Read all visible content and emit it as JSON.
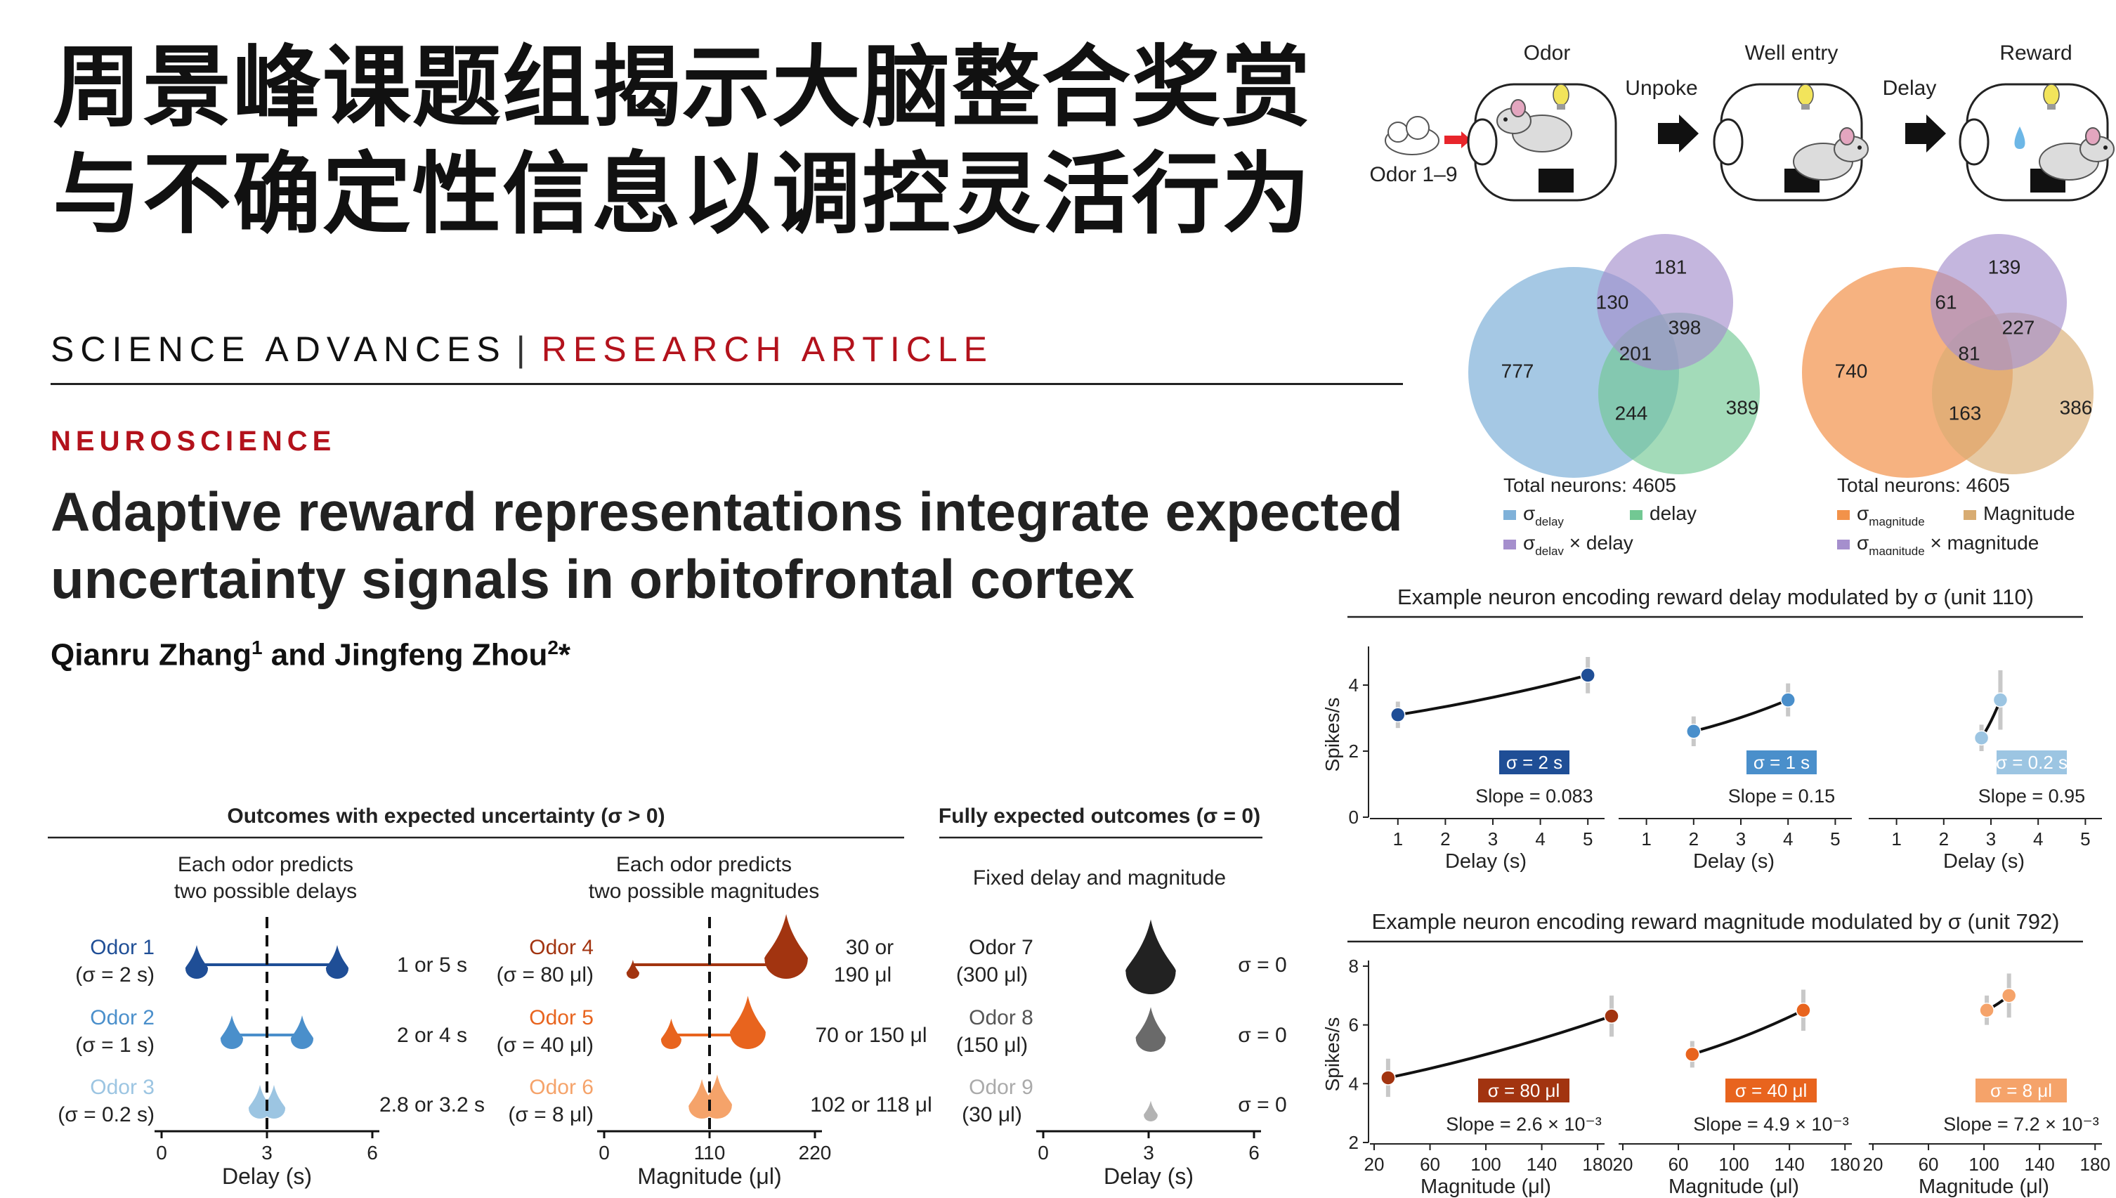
{
  "headline": {
    "line1": "周景峰课题组揭示大脑整合奖赏",
    "line2": "与不确定性信息以调控灵活行为"
  },
  "journal": {
    "name": "SCIENCE ADVANCES",
    "separator": "|",
    "article_type": "RESEARCH ARTICLE"
  },
  "section": "NEUROSCIENCE",
  "article": {
    "title_line1": "Adaptive reward representations integrate expected",
    "title_line2": "uncertainty signals in orbitofrontal cortex",
    "author1": "Qianru Zhang",
    "author1_sup": "1",
    "author_join": " and ",
    "author2": "Jingfeng Zhou",
    "author2_sup": "2",
    "author2_mark": "*"
  },
  "task_schematic": {
    "odor_label": "Odor",
    "odor_range": "Odor 1–9",
    "unpoke": "Unpoke",
    "well_entry": "Well entry",
    "delay": "Delay",
    "reward": "Reward"
  },
  "design_panel": {
    "header_uncertain": "Outcomes with expected uncertainty (σ > 0)",
    "header_fixed": "Fully expected outcomes (σ = 0)",
    "delay_sub1": "Each odor predicts",
    "delay_sub2": "two possible delays",
    "mag_sub1": "Each odor predicts",
    "mag_sub2": "two possible magnitudes",
    "fixed_sub": "Fixed delay and magnitude",
    "delay_rows": [
      {
        "odor": "Odor 1",
        "sigma": "(σ = 2 s)",
        "outcome": "1 or 5 s",
        "color": "#1f4e96",
        "low": 1,
        "high": 5
      },
      {
        "odor": "Odor 2",
        "sigma": "(σ = 1 s)",
        "outcome": "2 or 4 s",
        "color": "#4a8fcb",
        "low": 2,
        "high": 4
      },
      {
        "odor": "Odor 3",
        "sigma": "(σ = 0.2 s)",
        "outcome": "2.8 or 3.2 s",
        "color": "#9cc5e2",
        "low": 2.8,
        "high": 3.2
      }
    ],
    "mag_rows": [
      {
        "odor": "Odor 4",
        "sigma": "(σ = 80 μl)",
        "outcome1": "30 or",
        "outcome2": "190 μl",
        "color": "#a23410",
        "low": 30,
        "high": 190
      },
      {
        "odor": "Odor 5",
        "sigma": "(σ = 40 μl)",
        "outcome1": "70 or 150 μl",
        "outcome2": "",
        "color": "#e8641e",
        "low": 70,
        "high": 150
      },
      {
        "odor": "Odor 6",
        "sigma": "(σ = 8 μl)",
        "outcome1": "102 or 118 μl",
        "outcome2": "",
        "color": "#f5a36a",
        "low": 102,
        "high": 118
      }
    ],
    "fixed_rows": [
      {
        "odor": "Odor 7",
        "sub": "(300 μl)",
        "sigma": "σ = 0",
        "color": "#222222",
        "text_color": "#222222",
        "volume": 300
      },
      {
        "odor": "Odor 8",
        "sub": "(150 μl)",
        "sigma": "σ = 0",
        "color": "#6a6a6a",
        "text_color": "#555555",
        "volume": 150
      },
      {
        "odor": "Odor 9",
        "sub": "(30 μl)",
        "sigma": "σ = 0",
        "color": "#b3b3b3",
        "text_color": "#aaaaaa",
        "volume": 30
      }
    ],
    "delay_axis": {
      "ticks": [
        "0",
        "3",
        "6"
      ],
      "label": "Delay (s)"
    },
    "mag_axis": {
      "ticks": [
        "0",
        "110",
        "220"
      ],
      "label": "Magnitude (μl)"
    },
    "fixed_axis": {
      "ticks": [
        "0",
        "3",
        "6"
      ],
      "label": "Delay (s)"
    }
  },
  "chart_data": [
    {
      "type": "venn",
      "total_label": "Total neurons: 4605",
      "sets": [
        {
          "name": "σ",
          "sub": "delay",
          "color": "#7fb1d9"
        },
        {
          "name": "delay",
          "color": "#72c893"
        },
        {
          "name": "σ",
          "sub": "delay",
          "suffix": " × delay",
          "color": "#a58fcd"
        }
      ],
      "regions": {
        "a_only": 777,
        "c_only": 181,
        "b_only": 389,
        "ac": 130,
        "bc": 398,
        "ab": 244,
        "abc": 201
      }
    },
    {
      "type": "venn",
      "total_label": "Total neurons: 4605",
      "sets": [
        {
          "name": "σ",
          "sub": "magnitude",
          "color": "#f2924a"
        },
        {
          "name": "Magnitude",
          "color": "#d8ac72"
        },
        {
          "name": "σ",
          "sub": "magnitude",
          "suffix": " × magnitude",
          "color": "#a58fcd"
        }
      ],
      "regions": {
        "a_only": 740,
        "c_only": 139,
        "b_only": 386,
        "ac": 61,
        "bc": 227,
        "ab": 163,
        "abc": 81
      }
    },
    {
      "type": "line",
      "title": "Example neuron encoding reward delay modulated by σ (unit 110)",
      "ylabel": "Spikes/s",
      "xlabel": "Delay (s)",
      "ylim": [
        0,
        5
      ],
      "yticks": [
        0,
        2,
        4
      ],
      "xlim": [
        0.5,
        5.5
      ],
      "xticks": [
        1,
        2,
        3,
        4,
        5
      ],
      "panels": [
        {
          "label": "σ = 2 s",
          "slope": "Slope = 0.083",
          "color": "#1f4e96",
          "x": [
            1,
            5
          ],
          "y": [
            3.1,
            4.3
          ],
          "err": [
            0.4,
            0.55
          ]
        },
        {
          "label": "σ = 1 s",
          "slope": "Slope = 0.15",
          "color": "#4a8fcb",
          "x": [
            2,
            4
          ],
          "y": [
            2.6,
            3.55
          ],
          "err": [
            0.45,
            0.5
          ]
        },
        {
          "label": "σ = 0.2 s",
          "slope": "Slope = 0.95",
          "color": "#9cc5e2",
          "x": [
            2.8,
            3.2
          ],
          "y": [
            2.4,
            3.55
          ],
          "err": [
            0.4,
            0.9
          ]
        }
      ]
    },
    {
      "type": "line",
      "title": "Example neuron encoding reward magnitude modulated by σ (unit 792)",
      "ylabel": "Spikes/s",
      "xlabel": "Magnitude (μl)",
      "ylim": [
        2,
        8
      ],
      "yticks": [
        2,
        4,
        6,
        8
      ],
      "xlim": [
        20,
        190
      ],
      "xticks": [
        20,
        60,
        100,
        140,
        180
      ],
      "panels": [
        {
          "label": "σ = 80 μl",
          "slope": "Slope = 2.6 × 10⁻³",
          "color": "#a23410",
          "x": [
            30,
            190
          ],
          "y": [
            4.2,
            6.3
          ],
          "err": [
            0.65,
            0.7
          ]
        },
        {
          "label": "σ = 40 μl",
          "slope": "Slope = 4.9 × 10⁻³",
          "color": "#e8641e",
          "x": [
            70,
            150
          ],
          "y": [
            5.0,
            6.5
          ],
          "err": [
            0.45,
            0.7
          ]
        },
        {
          "label": "σ = 8 μl",
          "slope": "Slope = 7.2 × 10⁻³",
          "color": "#f5a36a",
          "x": [
            102,
            118
          ],
          "y": [
            6.5,
            7.0
          ],
          "err": [
            0.5,
            0.75
          ]
        }
      ]
    }
  ]
}
